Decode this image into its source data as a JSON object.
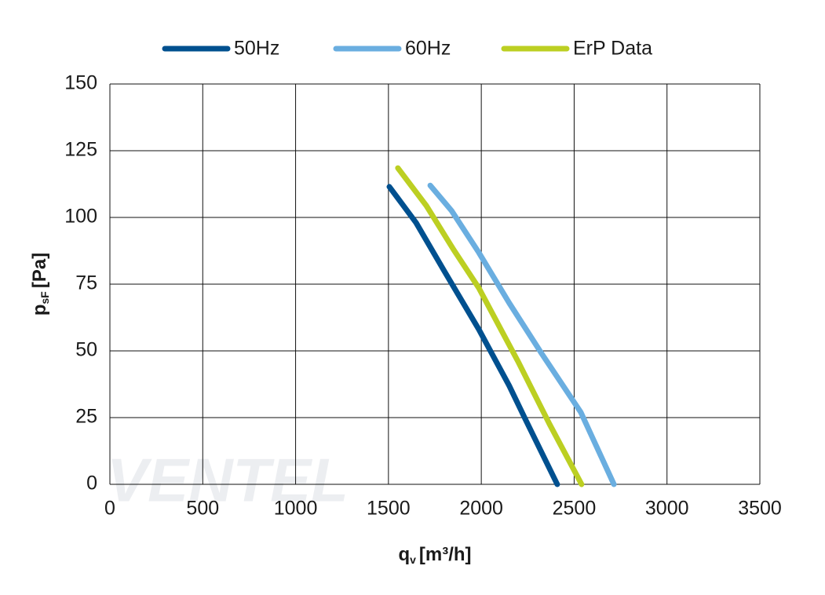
{
  "chart_data": {
    "type": "line",
    "watermark": "VENTEL",
    "x_label": {
      "symbol": "q",
      "subscript": "v",
      "unit": "[m³/h]"
    },
    "y_label": {
      "symbol": "p",
      "subscript": "sF",
      "unit": "[Pa]"
    },
    "xlim": [
      0,
      3500
    ],
    "ylim": [
      0,
      150
    ],
    "xticks": [
      0,
      500,
      1000,
      1500,
      2000,
      2500,
      3000,
      3500
    ],
    "yticks": [
      0,
      25,
      50,
      75,
      100,
      125,
      150
    ],
    "grid": true,
    "legend": "top",
    "series": [
      {
        "name": "50Hz",
        "color": "#00508f",
        "x": [
          1505,
          1649,
          1800,
          1987,
          2150,
          2240,
          2409
        ],
        "values": [
          111.5,
          98,
          80,
          58,
          37,
          24,
          0
        ]
      },
      {
        "name": "60Hz",
        "color": "#6aaee0",
        "x": [
          1725,
          1839,
          1987,
          2150,
          2325,
          2536,
          2714
        ],
        "values": [
          112,
          102.6,
          86.8,
          68,
          49,
          27,
          0
        ]
      },
      {
        "name": "ErP Data",
        "color": "#bccf22",
        "x": [
          1551,
          1704,
          1850,
          1987,
          2198,
          2367,
          2540
        ],
        "values": [
          118.5,
          104.4,
          88,
          73.5,
          46,
          22.6,
          0
        ]
      }
    ]
  }
}
